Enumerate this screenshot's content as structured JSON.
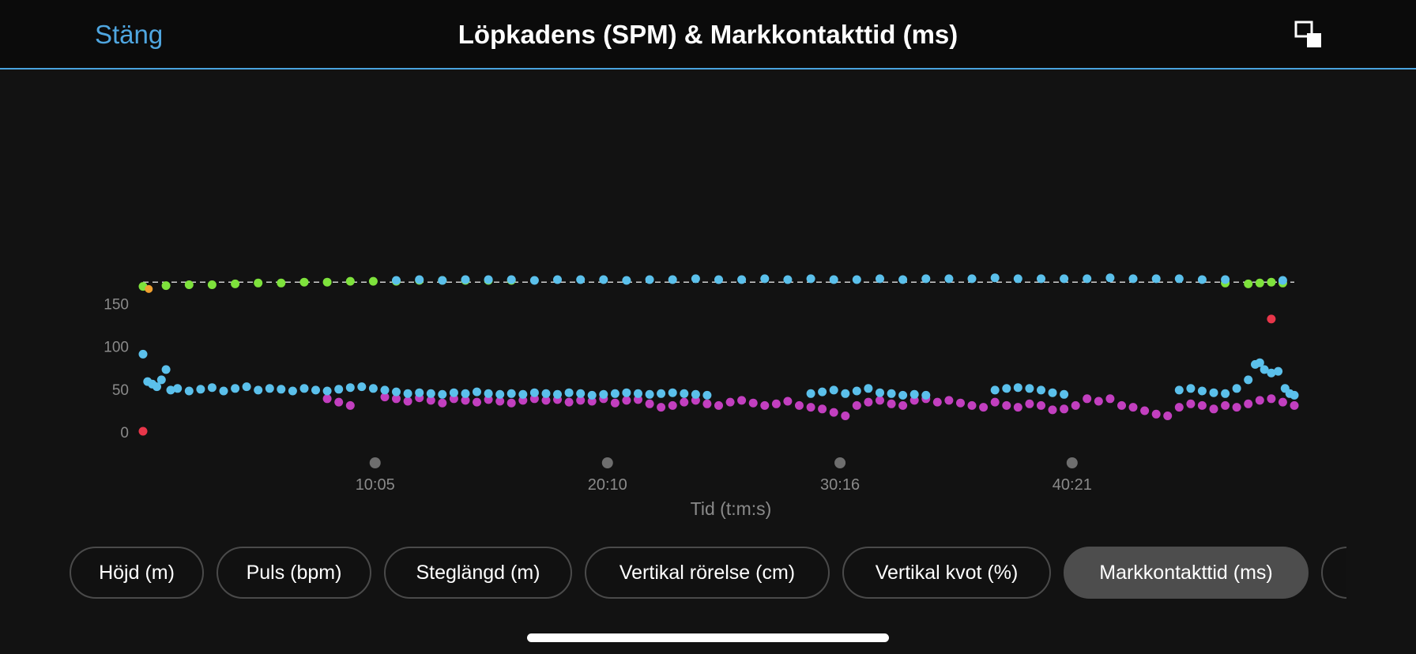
{
  "header": {
    "close_label": "Stäng",
    "title": "Löpkadens (SPM) & Markkontakttid (ms)",
    "expand_icon": "expand-icon"
  },
  "tabs": [
    {
      "label": "Höjd (m)",
      "active": false
    },
    {
      "label": "Puls (bpm)",
      "active": false
    },
    {
      "label": "Steglängd (m)",
      "active": false
    },
    {
      "label": "Vertikal rörelse (cm)",
      "active": false
    },
    {
      "label": "Vertikal kvot (%)",
      "active": false
    },
    {
      "label": "Markkontakttid (ms)",
      "active": true
    }
  ],
  "colors": {
    "accent": "#4fa6e0",
    "cadence_green": "#7ee23c",
    "cadence_blue": "#5bc0eb",
    "gct_blue": "#5bc0eb",
    "gct_magenta": "#c23fbf",
    "outlier_red": "#e8364a",
    "outlier_orange": "#f0a030"
  },
  "chart_data": {
    "type": "scatter",
    "xlabel": "Tid (t:m:s)",
    "x_unit": "minutes",
    "xlim": [
      0,
      50
    ],
    "ylim": [
      0,
      180
    ],
    "yticks": [
      0,
      50,
      100,
      150
    ],
    "xtick_labels": [
      {
        "x": 10.08,
        "label": "10:05"
      },
      {
        "x": 20.17,
        "label": "20:10"
      },
      {
        "x": 30.27,
        "label": "30:16"
      },
      {
        "x": 40.35,
        "label": "40:21"
      }
    ],
    "reference_line": 174,
    "series": [
      {
        "color": "green",
        "points": [
          [
            0,
            169
          ],
          [
            1,
            170
          ],
          [
            2,
            171
          ],
          [
            3,
            171
          ],
          [
            4,
            172
          ],
          [
            5,
            173
          ],
          [
            6,
            173
          ],
          [
            7,
            174
          ],
          [
            8,
            174
          ],
          [
            9,
            175
          ],
          [
            10,
            175
          ],
          [
            11,
            175
          ],
          [
            12,
            176
          ],
          [
            13,
            176
          ],
          [
            14,
            176
          ],
          [
            15,
            176
          ],
          [
            16,
            176
          ],
          [
            47,
            173
          ],
          [
            48,
            172
          ],
          [
            48.5,
            173
          ],
          [
            49,
            174
          ],
          [
            49.5,
            173
          ]
        ]
      },
      {
        "color": "blue",
        "points": [
          [
            11,
            176
          ],
          [
            12,
            177
          ],
          [
            13,
            176
          ],
          [
            14,
            177
          ],
          [
            15,
            177
          ],
          [
            16,
            177
          ],
          [
            17,
            176
          ],
          [
            18,
            177
          ],
          [
            19,
            177
          ],
          [
            20,
            177
          ],
          [
            21,
            176
          ],
          [
            22,
            177
          ],
          [
            23,
            177
          ],
          [
            24,
            178
          ],
          [
            25,
            177
          ],
          [
            26,
            177
          ],
          [
            27,
            178
          ],
          [
            28,
            177
          ],
          [
            29,
            178
          ],
          [
            30,
            177
          ],
          [
            31,
            177
          ],
          [
            32,
            178
          ],
          [
            33,
            177
          ],
          [
            34,
            178
          ],
          [
            35,
            178
          ],
          [
            36,
            178
          ],
          [
            37,
            179
          ],
          [
            38,
            178
          ],
          [
            39,
            178
          ],
          [
            40,
            178
          ],
          [
            41,
            178
          ],
          [
            42,
            179
          ],
          [
            43,
            178
          ],
          [
            44,
            178
          ],
          [
            45,
            178
          ],
          [
            46,
            177
          ],
          [
            47,
            177
          ],
          [
            49.5,
            176
          ]
        ]
      },
      {
        "color": "blue-gct",
        "points": [
          [
            0,
            90
          ],
          [
            0.2,
            58
          ],
          [
            0.4,
            55
          ],
          [
            0.6,
            52
          ],
          [
            0.8,
            60
          ],
          [
            1,
            72
          ],
          [
            1.2,
            48
          ],
          [
            1.5,
            50
          ],
          [
            2,
            47
          ],
          [
            2.5,
            49
          ],
          [
            3,
            51
          ],
          [
            3.5,
            47
          ],
          [
            4,
            50
          ],
          [
            4.5,
            52
          ],
          [
            5,
            48
          ],
          [
            5.5,
            50
          ],
          [
            6,
            49
          ],
          [
            6.5,
            47
          ],
          [
            7,
            50
          ],
          [
            7.5,
            48
          ],
          [
            8,
            47
          ],
          [
            8.5,
            49
          ],
          [
            9,
            51
          ],
          [
            9.5,
            52
          ],
          [
            10,
            50
          ],
          [
            10.5,
            48
          ],
          [
            11,
            46
          ],
          [
            11.5,
            44
          ],
          [
            12,
            45
          ],
          [
            12.5,
            44
          ],
          [
            13,
            43
          ],
          [
            13.5,
            45
          ],
          [
            14,
            44
          ],
          [
            14.5,
            46
          ],
          [
            15,
            44
          ],
          [
            15.5,
            43
          ],
          [
            16,
            44
          ],
          [
            16.5,
            43
          ],
          [
            17,
            45
          ],
          [
            17.5,
            44
          ],
          [
            18,
            43
          ],
          [
            18.5,
            45
          ],
          [
            19,
            44
          ],
          [
            19.5,
            42
          ],
          [
            20,
            43
          ],
          [
            20.5,
            44
          ],
          [
            21,
            45
          ],
          [
            21.5,
            44
          ],
          [
            22,
            43
          ],
          [
            22.5,
            44
          ],
          [
            23,
            45
          ],
          [
            23.5,
            44
          ],
          [
            24,
            43
          ],
          [
            24.5,
            42
          ],
          [
            29,
            44
          ],
          [
            29.5,
            46
          ],
          [
            30,
            48
          ],
          [
            30.5,
            44
          ],
          [
            31,
            47
          ],
          [
            31.5,
            50
          ],
          [
            32,
            45
          ],
          [
            32.5,
            44
          ],
          [
            33,
            42
          ],
          [
            33.5,
            43
          ],
          [
            34,
            42
          ],
          [
            37,
            48
          ],
          [
            37.5,
            50
          ],
          [
            38,
            51
          ],
          [
            38.5,
            50
          ],
          [
            39,
            48
          ],
          [
            39.5,
            45
          ],
          [
            40,
            43
          ],
          [
            45,
            48
          ],
          [
            45.5,
            50
          ],
          [
            46,
            47
          ],
          [
            46.5,
            45
          ],
          [
            47,
            44
          ],
          [
            47.5,
            50
          ],
          [
            48,
            60
          ],
          [
            48.3,
            78
          ],
          [
            48.5,
            80
          ],
          [
            48.7,
            72
          ],
          [
            49,
            68
          ],
          [
            49.3,
            70
          ],
          [
            49.6,
            50
          ],
          [
            49.8,
            44
          ],
          [
            50,
            42
          ]
        ]
      },
      {
        "color": "magenta",
        "points": [
          [
            8,
            38
          ],
          [
            8.5,
            34
          ],
          [
            9,
            30
          ],
          [
            10.5,
            40
          ],
          [
            11,
            38
          ],
          [
            11.5,
            35
          ],
          [
            12,
            39
          ],
          [
            12.5,
            36
          ],
          [
            13,
            33
          ],
          [
            13.5,
            38
          ],
          [
            14,
            36
          ],
          [
            14.5,
            34
          ],
          [
            15,
            37
          ],
          [
            15.5,
            35
          ],
          [
            16,
            33
          ],
          [
            16.5,
            36
          ],
          [
            17,
            38
          ],
          [
            17.5,
            36
          ],
          [
            18,
            37
          ],
          [
            18.5,
            34
          ],
          [
            19,
            36
          ],
          [
            19.5,
            35
          ],
          [
            20,
            38
          ],
          [
            20.5,
            33
          ],
          [
            21,
            36
          ],
          [
            21.5,
            37
          ],
          [
            22,
            32
          ],
          [
            22.5,
            28
          ],
          [
            23,
            30
          ],
          [
            23.5,
            34
          ],
          [
            24,
            36
          ],
          [
            24.5,
            32
          ],
          [
            25,
            30
          ],
          [
            25.5,
            34
          ],
          [
            26,
            36
          ],
          [
            26.5,
            33
          ],
          [
            27,
            30
          ],
          [
            27.5,
            32
          ],
          [
            28,
            35
          ],
          [
            28.5,
            30
          ],
          [
            29,
            28
          ],
          [
            29.5,
            26
          ],
          [
            30,
            22
          ],
          [
            30.5,
            18
          ],
          [
            31,
            30
          ],
          [
            31.5,
            34
          ],
          [
            32,
            36
          ],
          [
            32.5,
            32
          ],
          [
            33,
            30
          ],
          [
            33.5,
            36
          ],
          [
            34,
            38
          ],
          [
            34.5,
            34
          ],
          [
            35,
            36
          ],
          [
            35.5,
            33
          ],
          [
            36,
            30
          ],
          [
            36.5,
            28
          ],
          [
            37,
            34
          ],
          [
            37.5,
            30
          ],
          [
            38,
            28
          ],
          [
            38.5,
            32
          ],
          [
            39,
            30
          ],
          [
            39.5,
            25
          ],
          [
            40,
            26
          ],
          [
            40.5,
            30
          ],
          [
            41,
            38
          ],
          [
            41.5,
            35
          ],
          [
            42,
            38
          ],
          [
            42.5,
            30
          ],
          [
            43,
            28
          ],
          [
            43.5,
            24
          ],
          [
            44,
            20
          ],
          [
            44.5,
            18
          ],
          [
            45,
            28
          ],
          [
            45.5,
            32
          ],
          [
            46,
            30
          ],
          [
            46.5,
            26
          ],
          [
            47,
            30
          ],
          [
            47.5,
            28
          ],
          [
            48,
            32
          ],
          [
            48.5,
            36
          ],
          [
            49,
            38
          ],
          [
            49.5,
            34
          ],
          [
            50,
            30
          ]
        ]
      },
      {
        "color": "red",
        "points": [
          [
            0,
            0
          ],
          [
            49,
            131
          ]
        ]
      }
    ]
  }
}
